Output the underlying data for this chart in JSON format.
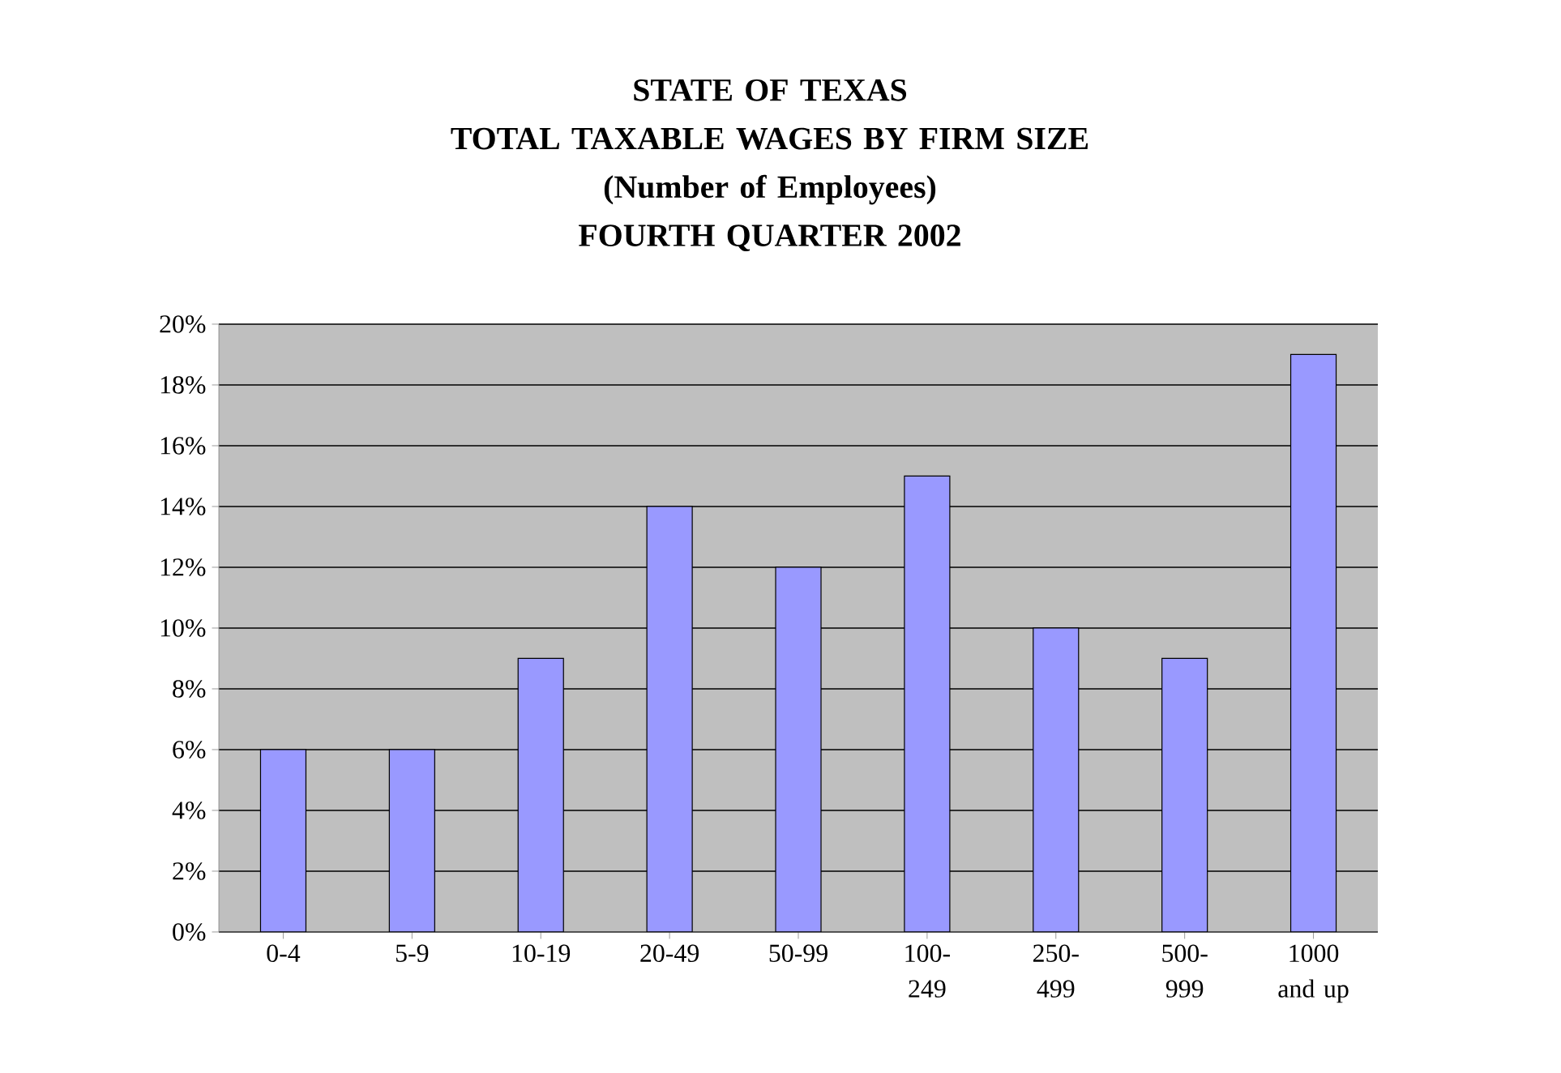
{
  "chart_data": {
    "type": "bar",
    "title": "STATE OF TEXAS\nTOTAL TAXABLE WAGES BY FIRM SIZE\n(Number of Employees)\nFOURTH QUARTER 2002",
    "categories": [
      "0-4",
      "5-9",
      "10-19",
      "20-49",
      "50-99",
      "100-249",
      "250-499",
      "500-999",
      "1000 and up"
    ],
    "values": [
      6,
      6,
      9,
      14,
      12,
      15,
      10,
      9,
      19
    ],
    "color": "#9999ff",
    "ylim": [
      0,
      20
    ],
    "yticks": [
      {
        "value": 0,
        "label": "0%"
      },
      {
        "value": 2,
        "label": "2%"
      },
      {
        "value": 4,
        "label": "4%"
      },
      {
        "value": 6,
        "label": "6%"
      },
      {
        "value": 8,
        "label": "8%"
      },
      {
        "value": 10,
        "label": "10%"
      },
      {
        "value": 12,
        "label": "12%"
      },
      {
        "value": 14,
        "label": "14%"
      },
      {
        "value": 16,
        "label": "16%"
      },
      {
        "value": 18,
        "label": "18%"
      },
      {
        "value": 20,
        "label": "20%"
      }
    ],
    "grid": "y"
  }
}
